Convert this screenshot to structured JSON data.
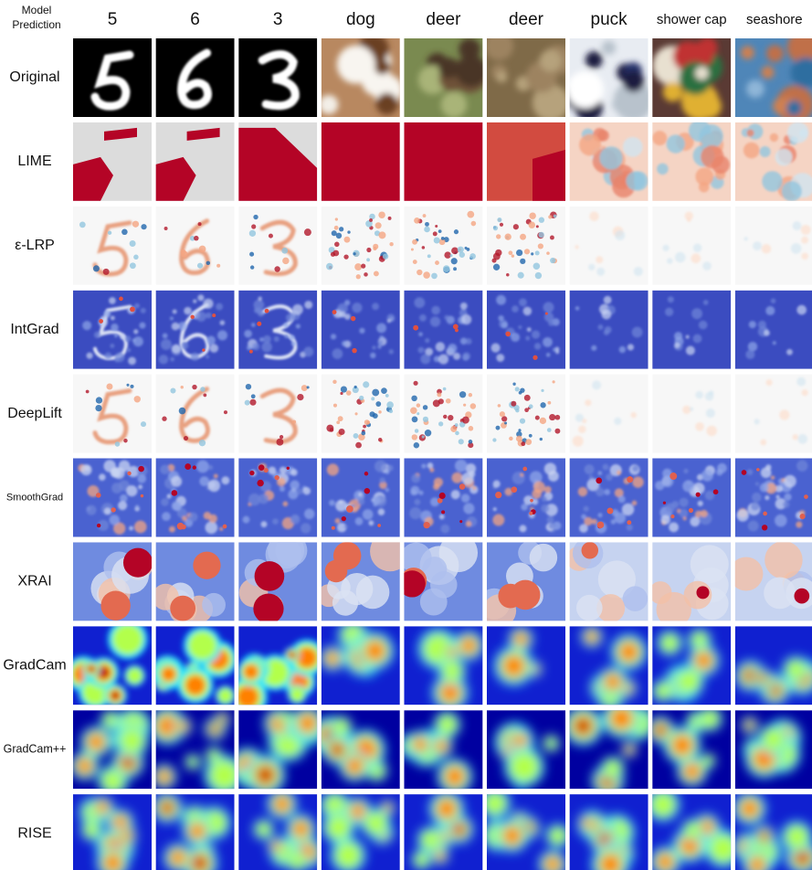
{
  "header": {
    "corner": [
      "Model",
      "Prediction"
    ],
    "predictions": [
      "5",
      "6",
      "3",
      "dog",
      "deer",
      "deer",
      "puck",
      "shower cap",
      "seashore"
    ]
  },
  "methods": [
    "Original",
    "LIME",
    "ε-LRP",
    "IntGrad",
    "DeepLift",
    "SmoothGrad",
    "XRAI",
    "GradCam",
    "GradCam++",
    "RISE"
  ]
}
